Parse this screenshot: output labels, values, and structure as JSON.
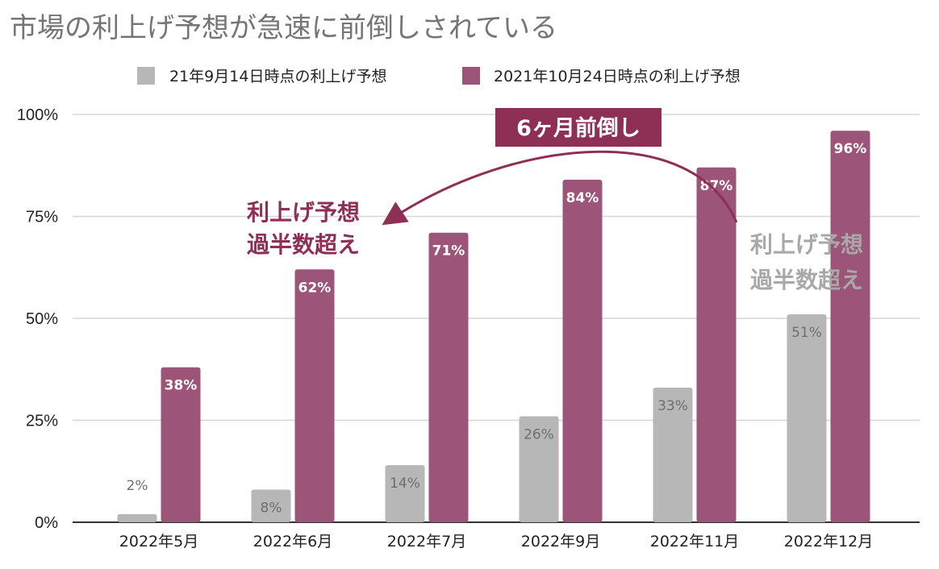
{
  "chart_data": {
    "type": "bar",
    "title": "市場の利上げ予想が急速に前倒しされている",
    "xlabel": "",
    "ylabel": "",
    "ylim": [
      0,
      100
    ],
    "yticks": [
      "0%",
      "25%",
      "50%",
      "75%",
      "100%"
    ],
    "grid": true,
    "legend_position": "top",
    "categories": [
      "2022年5月",
      "2022年6月",
      "2022年7月",
      "2022年9月",
      "2022年11月",
      "2022年12月"
    ],
    "series": [
      {
        "name": "21年9月14日時点の利上げ予想",
        "color": "#b7b7b7",
        "values": [
          2,
          8,
          14,
          26,
          33,
          51
        ],
        "labels": [
          "2%",
          "8%",
          "14%",
          "26%",
          "33%",
          "51%"
        ]
      },
      {
        "name": "2021年10月24日時点の利上げ予想",
        "color": "#9c5478",
        "values": [
          38,
          62,
          71,
          84,
          87,
          96
        ],
        "labels": [
          "38%",
          "62%",
          "71%",
          "84%",
          "87%",
          "96%"
        ]
      }
    ],
    "annotations": {
      "banner": "6ヶ月前倒し",
      "left_line1": "利上げ予想",
      "left_line2": "過半数超え",
      "right_line1": "利上げ予想",
      "right_line2": "過半数超え"
    },
    "colors": {
      "accent": "#8e2f56",
      "annotation_gray": "#a8a8a8",
      "grid": "#d6d6d6",
      "axis": "#333333"
    }
  }
}
